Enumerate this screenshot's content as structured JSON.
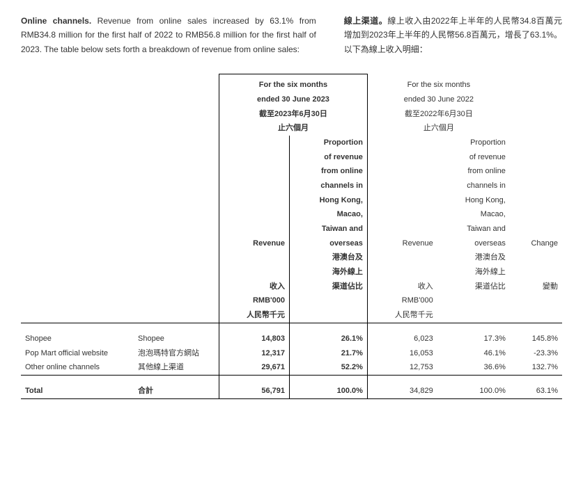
{
  "intro": {
    "en_bold": "Online channels.",
    "en_rest": " Revenue from online sales increased by 63.1% from RMB34.8 million for the first half of 2022 to RMB56.8 million for the first half of 2023. The table below sets forth a breakdown of revenue from online sales:",
    "zh_bold": "線上渠道。",
    "zh_rest": "線上收入由2022年上半年的人民幣34.8百萬元增加到2023年上半年的人民幣56.8百萬元，增長了63.1%。以下為線上收入明細："
  },
  "headers": {
    "period2023_en": "For the six months",
    "period2023_en2": "ended 30 June 2023",
    "period2023_zh": "截至2023年6月30日",
    "period2023_zh2": "止六個月",
    "period2022_en": "For the six months",
    "period2022_en2": "ended 30 June 2022",
    "period2022_zh": "截至2022年6月30日",
    "period2022_zh2": "止六個月",
    "prop_lines": [
      "Proportion",
      "of revenue",
      "from online",
      "channels in",
      "Hong Kong,",
      "Macao,",
      "Taiwan and",
      "overseas",
      "港澳台及",
      "海外線上",
      "渠道佔比"
    ],
    "revenue_en": "Revenue",
    "revenue_zh": "收入",
    "unit_en": "RMB'000",
    "unit_zh": "人民幣千元",
    "change_en": "Change",
    "change_zh": "變動"
  },
  "rows": [
    {
      "name_en": "Shopee",
      "name_zh": "Shopee",
      "rev23": "14,803",
      "pct23": "26.1%",
      "rev22": "6,023",
      "pct22": "17.3%",
      "chg": "145.8%"
    },
    {
      "name_en": "Pop Mart official website",
      "name_zh": "泡泡瑪特官方網站",
      "rev23": "12,317",
      "pct23": "21.7%",
      "rev22": "16,053",
      "pct22": "46.1%",
      "chg": "-23.3%"
    },
    {
      "name_en": "Other online channels",
      "name_zh": "其他線上渠道",
      "rev23": "29,671",
      "pct23": "52.2%",
      "rev22": "12,753",
      "pct22": "36.6%",
      "chg": "132.7%"
    }
  ],
  "total": {
    "label_en": "Total",
    "label_zh": "合計",
    "rev23": "56,791",
    "pct23": "100.0%",
    "rev22": "34,829",
    "pct22": "100.0%",
    "chg": "63.1%"
  }
}
